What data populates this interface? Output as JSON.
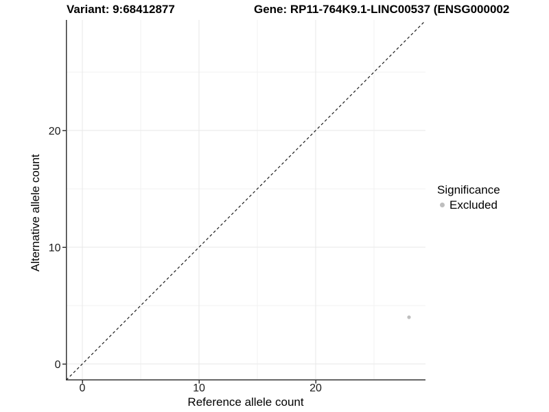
{
  "header": {
    "title_left": "Variant: 9:68412877",
    "title_right": "Gene: RP11-764K9.1-LINC00537 (ENSG000002"
  },
  "chart_data": {
    "type": "scatter",
    "title": "Variant: 9:68412877   Gene: RP11-764K9.1-LINC00537 (ENSG000002",
    "xlabel": "Reference allele count",
    "ylabel": "Alternative allele count",
    "xlim": [
      -1.38,
      29.4
    ],
    "ylim": [
      -1.38,
      29.4
    ],
    "x_ticks": [
      0,
      10,
      20
    ],
    "y_ticks": [
      0,
      10,
      20
    ],
    "x_tick_labels": [
      "0",
      "10",
      "20"
    ],
    "y_tick_labels": [
      "0",
      "10",
      "20"
    ],
    "x_minor_ticks": [
      5,
      15,
      25
    ],
    "y_minor_ticks": [
      5,
      15,
      25
    ],
    "grid": true,
    "identity_line": {
      "slope": 1,
      "intercept": 0,
      "linetype": "dashed",
      "color": "#1a1a1a"
    },
    "series": [
      {
        "name": "Excluded",
        "color": "#bebebe",
        "points": [
          [
            28,
            4
          ]
        ]
      }
    ],
    "legend": {
      "position": "right",
      "title": "Significance",
      "entries": [
        {
          "label": "Excluded",
          "color": "#bebebe"
        }
      ]
    },
    "colors": {
      "axis_line": "#333333",
      "tick_label": "#1a1a1a",
      "grid_major": "#e7e7e7",
      "grid_minor": "#f2f2f2",
      "background": "#ffffff"
    }
  }
}
